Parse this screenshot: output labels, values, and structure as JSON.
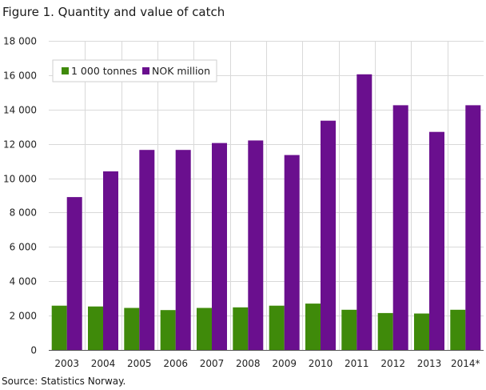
{
  "title": "Figure 1. Quantity and value of catch",
  "source": "Source: Statistics Norway.",
  "chart_data": {
    "type": "bar",
    "title": "Figure 1. Quantity and value of catch",
    "xlabel": "",
    "ylabel": "",
    "ylim": [
      0,
      18000
    ],
    "yticks": [
      0,
      2000,
      4000,
      6000,
      8000,
      10000,
      12000,
      14000,
      16000,
      18000
    ],
    "ytick_labels": [
      "0",
      "2 000",
      "4 000",
      "6 000",
      "8 000",
      "10 000",
      "12 000",
      "14 000",
      "16 000",
      "18 000"
    ],
    "categories": [
      "2003",
      "2004",
      "2005",
      "2006",
      "2007",
      "2008",
      "2009",
      "2010",
      "2011",
      "2012",
      "2013",
      "2014*"
    ],
    "series": [
      {
        "name": "1 000 tonnes",
        "color": "#3f8a0a",
        "values": [
          2580,
          2530,
          2450,
          2320,
          2450,
          2480,
          2580,
          2700,
          2340,
          2150,
          2120,
          2340
        ]
      },
      {
        "name": "NOK million",
        "color": "#6a0f8e",
        "values": [
          8900,
          10400,
          11650,
          11650,
          12050,
          12200,
          11350,
          13350,
          16050,
          14250,
          12700,
          14250
        ]
      }
    ],
    "grid": true,
    "legend": "top-left"
  }
}
